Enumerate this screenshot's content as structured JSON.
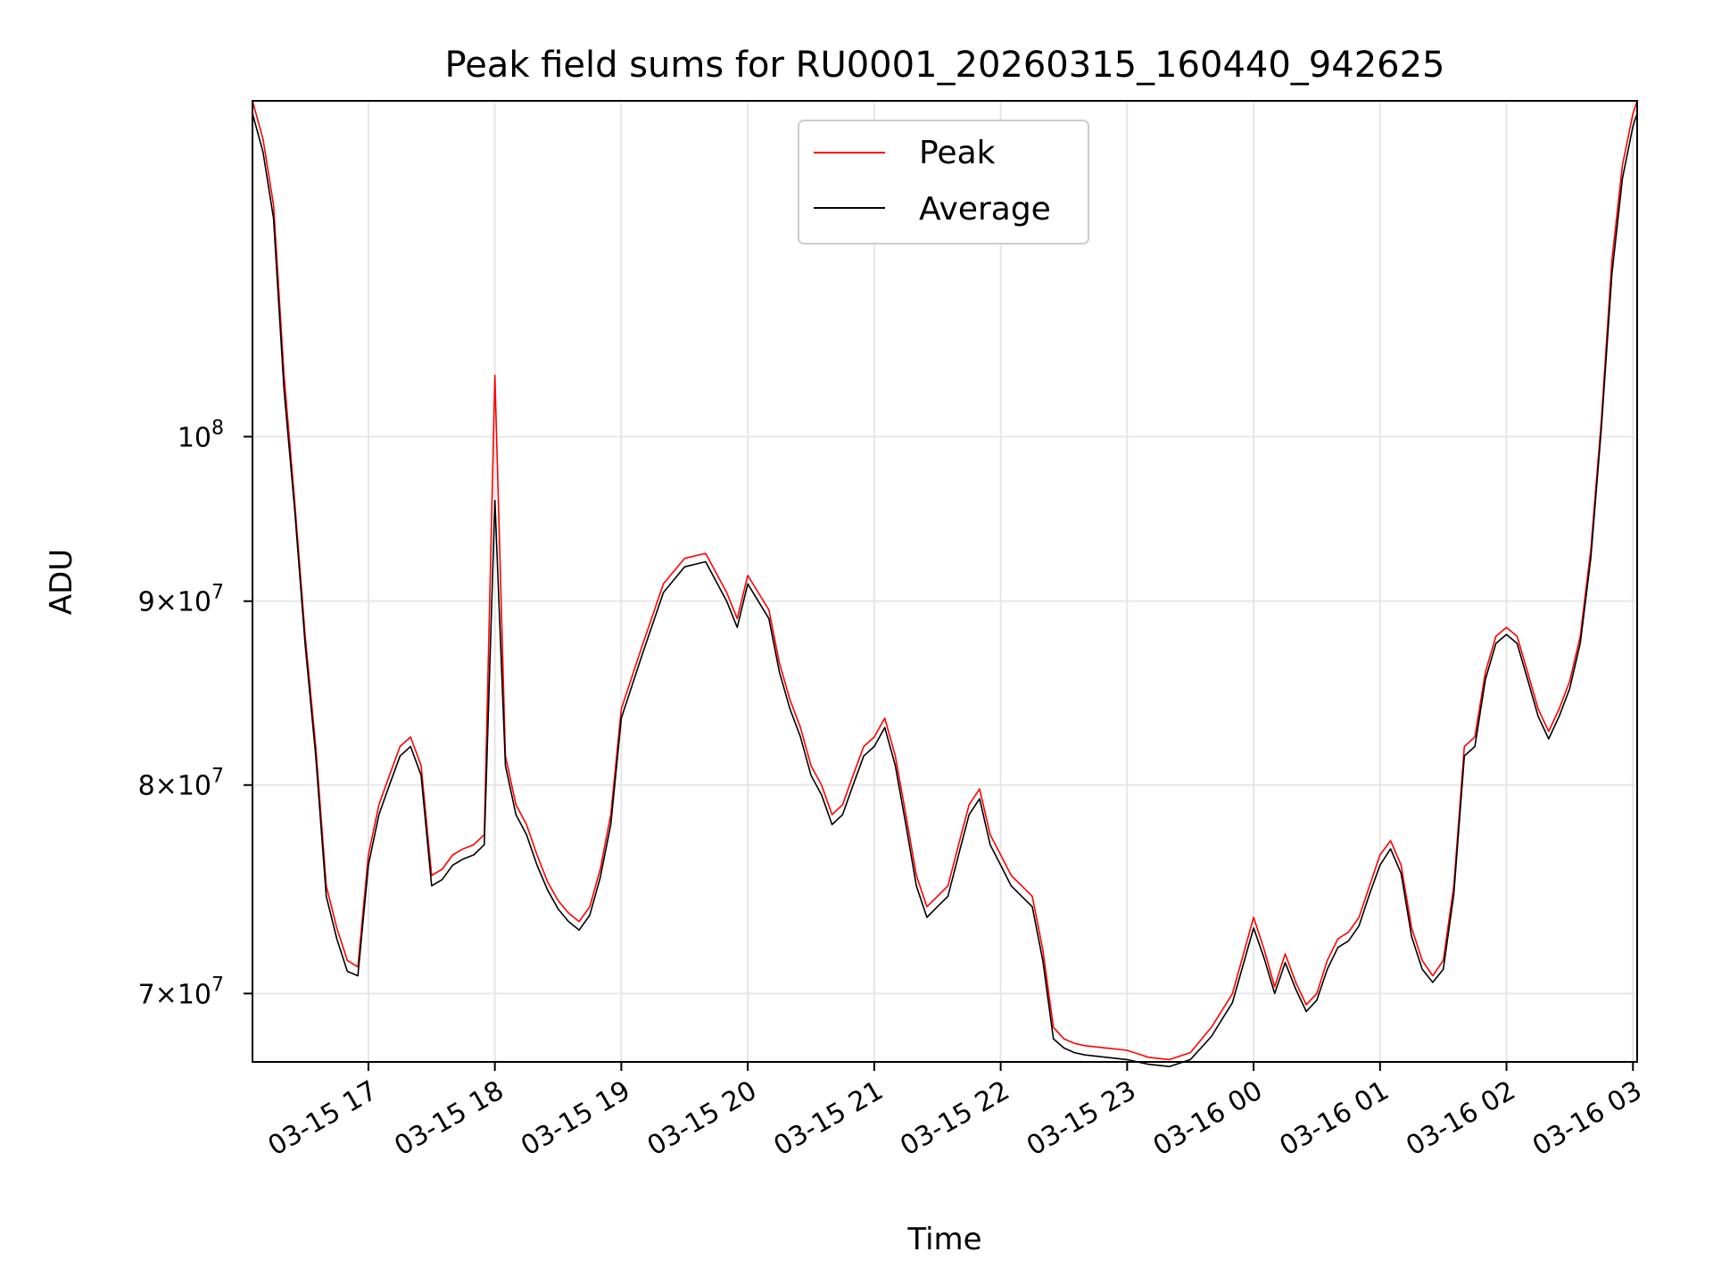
{
  "chart_data": {
    "type": "line",
    "title": "Peak field sums for RU0001_20260315_160440_942625",
    "xlabel": "Time",
    "ylabel": "ADU",
    "yscale": "log",
    "grid": true,
    "legend_position": "top-center",
    "xlim": [
      "03-15 16:05",
      "03-16 03:02"
    ],
    "ylim": [
      67000000,
      124000000
    ],
    "x_ticks": [
      "03-15 17",
      "03-15 18",
      "03-15 19",
      "03-15 20",
      "03-15 21",
      "03-15 22",
      "03-15 23",
      "03-16 00",
      "03-16 01",
      "03-16 02",
      "03-16 03"
    ],
    "y_ticks": [
      {
        "value": 70000000,
        "mantissa": "7",
        "exponent": "7"
      },
      {
        "value": 80000000,
        "mantissa": "8",
        "exponent": "7"
      },
      {
        "value": 90000000,
        "mantissa": "9",
        "exponent": "7"
      },
      {
        "value": 100000000,
        "mantissa": "",
        "exponent": "8"
      }
    ],
    "series": [
      {
        "name": "Peak",
        "color": "#ff0000",
        "x": [
          "03-15 16:05",
          "03-15 16:10",
          "03-15 16:15",
          "03-15 16:20",
          "03-15 16:25",
          "03-15 16:30",
          "03-15 16:35",
          "03-15 16:40",
          "03-15 16:45",
          "03-15 16:50",
          "03-15 16:55",
          "03-15 17:00",
          "03-15 17:05",
          "03-15 17:10",
          "03-15 17:15",
          "03-15 17:20",
          "03-15 17:25",
          "03-15 17:30",
          "03-15 17:35",
          "03-15 17:40",
          "03-15 17:45",
          "03-15 17:50",
          "03-15 17:55",
          "03-15 18:00",
          "03-15 18:05",
          "03-15 18:10",
          "03-15 18:15",
          "03-15 18:20",
          "03-15 18:25",
          "03-15 18:30",
          "03-15 18:35",
          "03-15 18:40",
          "03-15 18:45",
          "03-15 18:50",
          "03-15 18:55",
          "03-15 19:00",
          "03-15 19:10",
          "03-15 19:20",
          "03-15 19:30",
          "03-15 19:40",
          "03-15 19:50",
          "03-15 19:55",
          "03-15 20:00",
          "03-15 20:05",
          "03-15 20:10",
          "03-15 20:15",
          "03-15 20:20",
          "03-15 20:25",
          "03-15 20:30",
          "03-15 20:35",
          "03-15 20:40",
          "03-15 20:45",
          "03-15 20:50",
          "03-15 20:55",
          "03-15 21:00",
          "03-15 21:05",
          "03-15 21:10",
          "03-15 21:15",
          "03-15 21:20",
          "03-15 21:25",
          "03-15 21:30",
          "03-15 21:35",
          "03-15 21:40",
          "03-15 21:45",
          "03-15 21:50",
          "03-15 21:55",
          "03-15 22:00",
          "03-15 22:05",
          "03-15 22:10",
          "03-15 22:15",
          "03-15 22:20",
          "03-15 22:25",
          "03-15 22:30",
          "03-15 22:35",
          "03-15 22:40",
          "03-15 22:50",
          "03-15 23:00",
          "03-15 23:10",
          "03-15 23:20",
          "03-15 23:30",
          "03-15 23:40",
          "03-15 23:50",
          "03-16 00:00",
          "03-16 00:05",
          "03-16 00:10",
          "03-16 00:15",
          "03-16 00:20",
          "03-16 00:25",
          "03-16 00:30",
          "03-16 00:35",
          "03-16 00:40",
          "03-16 00:45",
          "03-16 00:50",
          "03-16 00:55",
          "03-16 01:00",
          "03-16 01:05",
          "03-16 01:10",
          "03-16 01:15",
          "03-16 01:20",
          "03-16 01:25",
          "03-16 01:30",
          "03-16 01:35",
          "03-16 01:40",
          "03-16 01:45",
          "03-16 01:50",
          "03-16 01:55",
          "03-16 02:00",
          "03-16 02:05",
          "03-16 02:10",
          "03-16 02:15",
          "03-16 02:20",
          "03-16 02:25",
          "03-16 02:30",
          "03-16 02:35",
          "03-16 02:40",
          "03-16 02:45",
          "03-16 02:50",
          "03-16 02:55",
          "03-16 03:00",
          "03-16 03:02"
        ],
        "y": [
          124000000,
          121000000,
          116000000,
          104000000,
          96000000,
          88000000,
          82000000,
          75000000,
          73000000,
          71500000,
          71200000,
          76500000,
          79000000,
          80500000,
          82000000,
          82500000,
          81000000,
          75500000,
          75800000,
          76500000,
          76800000,
          77000000,
          77500000,
          104000000,
          81500000,
          79000000,
          78000000,
          76500000,
          75200000,
          74300000,
          73700000,
          73300000,
          74000000,
          75800000,
          78500000,
          84000000,
          87500000,
          91000000,
          92500000,
          92800000,
          90500000,
          89000000,
          91500000,
          90500000,
          89500000,
          86500000,
          84500000,
          83000000,
          81000000,
          80000000,
          78500000,
          79000000,
          80500000,
          82000000,
          82500000,
          83500000,
          81500000,
          78500000,
          75500000,
          74000000,
          74500000,
          75000000,
          77000000,
          79000000,
          79800000,
          77500000,
          76500000,
          75500000,
          75000000,
          74500000,
          72000000,
          68500000,
          68000000,
          67800000,
          67700000,
          67600000,
          67500000,
          67200000,
          67100000,
          67400000,
          68500000,
          70000000,
          73500000,
          72000000,
          70300000,
          71800000,
          70500000,
          69500000,
          70000000,
          71500000,
          72500000,
          72800000,
          73500000,
          75000000,
          76500000,
          77200000,
          76000000,
          73000000,
          71500000,
          70800000,
          71500000,
          75000000,
          82000000,
          82500000,
          86000000,
          88000000,
          88500000,
          88000000,
          86000000,
          84000000,
          82800000,
          84000000,
          85500000,
          88000000,
          93000000,
          101000000,
          112000000,
          119000000,
          123000000,
          124000000
        ]
      },
      {
        "name": "Average",
        "color": "#000000",
        "x": [
          "03-15 16:05",
          "03-15 16:10",
          "03-15 16:15",
          "03-15 16:20",
          "03-15 16:25",
          "03-15 16:30",
          "03-15 16:35",
          "03-15 16:40",
          "03-15 16:45",
          "03-15 16:50",
          "03-15 16:55",
          "03-15 17:00",
          "03-15 17:05",
          "03-15 17:10",
          "03-15 17:15",
          "03-15 17:20",
          "03-15 17:25",
          "03-15 17:30",
          "03-15 17:35",
          "03-15 17:40",
          "03-15 17:45",
          "03-15 17:50",
          "03-15 17:55",
          "03-15 18:00",
          "03-15 18:05",
          "03-15 18:10",
          "03-15 18:15",
          "03-15 18:20",
          "03-15 18:25",
          "03-15 18:30",
          "03-15 18:35",
          "03-15 18:40",
          "03-15 18:45",
          "03-15 18:50",
          "03-15 18:55",
          "03-15 19:00",
          "03-15 19:10",
          "03-15 19:20",
          "03-15 19:30",
          "03-15 19:40",
          "03-15 19:50",
          "03-15 19:55",
          "03-15 20:00",
          "03-15 20:05",
          "03-15 20:10",
          "03-15 20:15",
          "03-15 20:20",
          "03-15 20:25",
          "03-15 20:30",
          "03-15 20:35",
          "03-15 20:40",
          "03-15 20:45",
          "03-15 20:50",
          "03-15 20:55",
          "03-15 21:00",
          "03-15 21:05",
          "03-15 21:10",
          "03-15 21:15",
          "03-15 21:20",
          "03-15 21:25",
          "03-15 21:30",
          "03-15 21:35",
          "03-15 21:40",
          "03-15 21:45",
          "03-15 21:50",
          "03-15 21:55",
          "03-15 22:00",
          "03-15 22:05",
          "03-15 22:10",
          "03-15 22:15",
          "03-15 22:20",
          "03-15 22:25",
          "03-15 22:30",
          "03-15 22:35",
          "03-15 22:40",
          "03-15 22:50",
          "03-15 23:00",
          "03-15 23:10",
          "03-15 23:20",
          "03-15 23:30",
          "03-15 23:40",
          "03-15 23:50",
          "03-16 00:00",
          "03-16 00:05",
          "03-16 00:10",
          "03-16 00:15",
          "03-16 00:20",
          "03-16 00:25",
          "03-16 00:30",
          "03-16 00:35",
          "03-16 00:40",
          "03-16 00:45",
          "03-16 00:50",
          "03-16 00:55",
          "03-16 01:00",
          "03-16 01:05",
          "03-16 01:10",
          "03-16 01:15",
          "03-16 01:20",
          "03-16 01:25",
          "03-16 01:30",
          "03-16 01:35",
          "03-16 01:40",
          "03-16 01:45",
          "03-16 01:50",
          "03-16 01:55",
          "03-16 02:00",
          "03-16 02:05",
          "03-16 02:10",
          "03-16 02:15",
          "03-16 02:20",
          "03-16 02:25",
          "03-16 02:30",
          "03-16 02:35",
          "03-16 02:40",
          "03-16 02:45",
          "03-16 02:50",
          "03-16 02:55",
          "03-16 03:00",
          "03-16 03:02"
        ],
        "y": [
          123000000,
          120000000,
          115000000,
          103000000,
          95500000,
          87500000,
          81500000,
          74500000,
          72500000,
          71000000,
          70800000,
          76000000,
          78500000,
          80000000,
          81500000,
          82000000,
          80500000,
          75000000,
          75300000,
          76000000,
          76300000,
          76500000,
          77000000,
          96000000,
          81000000,
          78500000,
          77500000,
          76000000,
          74800000,
          73900000,
          73300000,
          72900000,
          73600000,
          75400000,
          78000000,
          83500000,
          87000000,
          90500000,
          92000000,
          92300000,
          90000000,
          88500000,
          91000000,
          90000000,
          89000000,
          86000000,
          84000000,
          82500000,
          80500000,
          79500000,
          78000000,
          78500000,
          80000000,
          81500000,
          82000000,
          83000000,
          81000000,
          78000000,
          75000000,
          73500000,
          74000000,
          74500000,
          76500000,
          78500000,
          79300000,
          77000000,
          76000000,
          75000000,
          74500000,
          74000000,
          71500000,
          68000000,
          67600000,
          67400000,
          67300000,
          67200000,
          67100000,
          66900000,
          66800000,
          67100000,
          68100000,
          69600000,
          73000000,
          71600000,
          70000000,
          71400000,
          70200000,
          69200000,
          69700000,
          71100000,
          72100000,
          72400000,
          73100000,
          74600000,
          76000000,
          76800000,
          75600000,
          72600000,
          71100000,
          70500000,
          71100000,
          74600000,
          81500000,
          82000000,
          85600000,
          87600000,
          88100000,
          87600000,
          85600000,
          83600000,
          82400000,
          83600000,
          85100000,
          87600000,
          92500000,
          100500000,
          111000000,
          118000000,
          122000000,
          123000000
        ]
      }
    ]
  }
}
